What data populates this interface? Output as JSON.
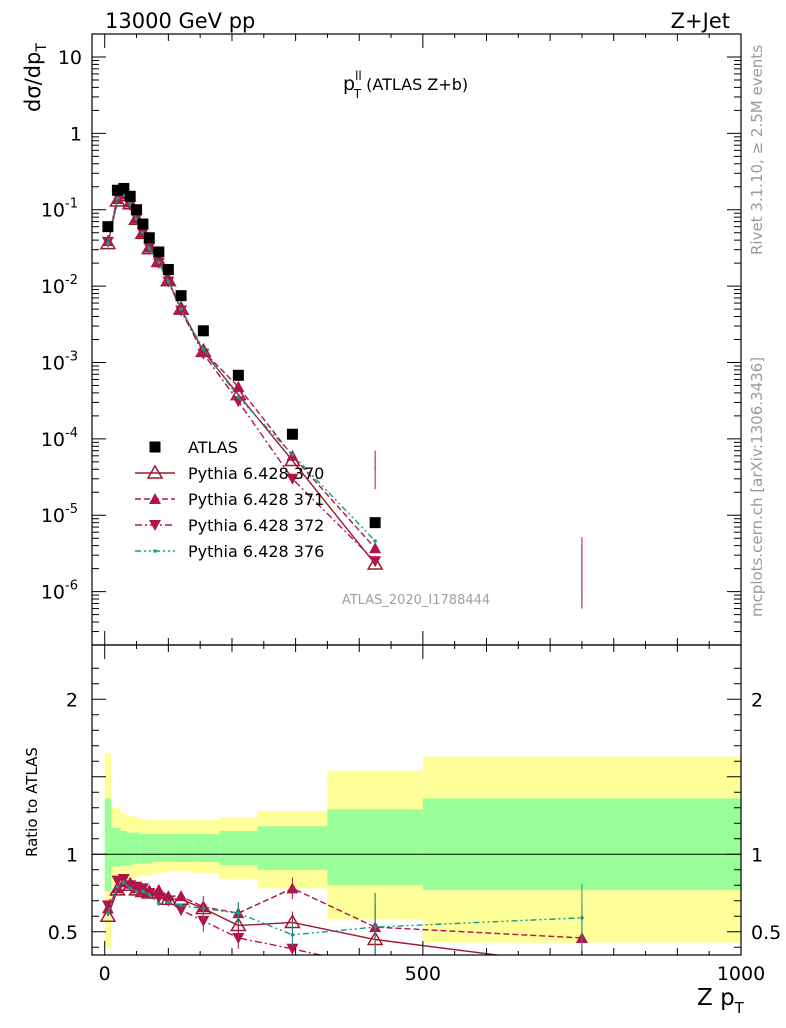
{
  "header": {
    "energy_label": "13000 GeV pp",
    "process_label": "Z+Jet",
    "plot_title_main": "p",
    "plot_title_sup": "ll",
    "plot_title_sub": "T",
    "plot_title_rest": " (ATLAS Z+b)",
    "analysis_id": "ATLAS_2020_I1788444",
    "rivet_label": "Rivet 3.1.10, ≥ 2.5M events",
    "source_label": "mcplots.cern.ch [arXiv:1306.3436]"
  },
  "axes": {
    "ylabel_main": "dσ/dp",
    "ylabel_main_sub": "T",
    "ylabel_ratio": "Ratio to ATLAS",
    "xlabel": "Z p",
    "xlabel_sub": "T"
  },
  "colors": {
    "data": "#000000",
    "p370": "#9b1b2a",
    "p371": "#b0154a",
    "p372": "#b0154a",
    "p376": "#199a8c",
    "band_outer": "#ffff99",
    "band_inner": "#99ff99"
  },
  "chart_data": [
    {
      "type": "scatter",
      "panel": "main",
      "yscale": "log",
      "xlim": [
        -20,
        1000
      ],
      "ylim": [
        2e-07,
        20
      ],
      "x_ticks": [
        0,
        500,
        1000
      ],
      "y_ticks": [
        {
          "v": 1e-06,
          "b": "10",
          "e": "-6"
        },
        {
          "v": 1e-05,
          "b": "10",
          "e": "-5"
        },
        {
          "v": 0.0001,
          "b": "10",
          "e": "-4"
        },
        {
          "v": 0.001,
          "b": "10",
          "e": "-3"
        },
        {
          "v": 0.01,
          "b": "10",
          "e": "-2"
        },
        {
          "v": 0.1,
          "b": "10",
          "e": "-1"
        },
        {
          "v": 1,
          "b": "1",
          "e": ""
        },
        {
          "v": 10,
          "b": "10",
          "e": ""
        }
      ],
      "x": [
        5,
        20,
        30,
        40,
        50,
        60,
        70,
        85,
        100,
        120,
        155,
        210,
        295,
        425,
        750
      ],
      "series": [
        {
          "name": "ATLAS",
          "marker": "square",
          "style": "none",
          "values": [
            0.06,
            0.18,
            0.19,
            0.15,
            0.1,
            0.065,
            0.043,
            0.028,
            0.0165,
            0.0075,
            0.0026,
            0.00068,
            0.000115,
            8e-06,
            null
          ]
        },
        {
          "name": "Pythia 6.428 370",
          "marker": "triangle-open",
          "style": "solid",
          "values": [
            0.036,
            0.13,
            0.155,
            0.12,
            0.075,
            0.049,
            0.031,
            0.021,
            0.0118,
            0.005,
            0.0014,
            0.00038,
            5.2e-05,
            2.3e-06,
            null
          ]
        },
        {
          "name": "Pythia 6.428 371",
          "marker": "triangle-up",
          "style": "dashed",
          "values": [
            0.039,
            0.138,
            0.16,
            0.125,
            0.077,
            0.05,
            0.032,
            0.021,
            0.0118,
            0.005,
            0.0014,
            0.00048,
            6e-05,
            3.7e-06,
            null
          ]
        },
        {
          "name": "Pythia 6.428 372",
          "marker": "triangle-down",
          "style": "dashdot",
          "values": [
            0.038,
            0.15,
            0.165,
            0.115,
            0.078,
            0.05,
            0.032,
            0.02,
            0.0115,
            0.0048,
            0.0013,
            0.00031,
            3e-05,
            2.5e-06,
            null
          ]
        },
        {
          "name": "Pythia 6.428 376",
          "marker": "dot",
          "style": "dashdotdot",
          "values": [
            0.036,
            0.14,
            0.155,
            0.118,
            0.076,
            0.05,
            0.031,
            0.0205,
            0.0115,
            0.005,
            0.0015,
            0.00035,
            6.2e-05,
            4.6e-06,
            null
          ]
        }
      ],
      "legend": [
        "ATLAS",
        "Pythia 6.428 370",
        "Pythia 6.428 371",
        "Pythia 6.428 372",
        "Pythia 6.428 376"
      ],
      "legend_position": "bottom-left"
    },
    {
      "type": "line",
      "panel": "ratio",
      "xlim": [
        -20,
        1000
      ],
      "ylim": [
        0.35,
        2.35
      ],
      "y_ticks": [
        0.5,
        1,
        2
      ],
      "y_tick_labels": [
        "0.5",
        "1",
        "2"
      ],
      "reference": 1,
      "bins": [
        [
          0,
          10
        ],
        [
          10,
          25
        ],
        [
          25,
          35
        ],
        [
          35,
          45
        ],
        [
          45,
          55
        ],
        [
          55,
          65
        ],
        [
          65,
          75
        ],
        [
          75,
          95
        ],
        [
          95,
          110
        ],
        [
          110,
          140
        ],
        [
          140,
          180
        ],
        [
          180,
          240
        ],
        [
          240,
          350
        ],
        [
          350,
          500
        ],
        [
          500,
          1000
        ]
      ],
      "band_outer": [
        [
          0.4,
          1.65
        ],
        [
          0.8,
          1.3
        ],
        [
          0.83,
          1.26
        ],
        [
          0.84,
          1.25
        ],
        [
          0.85,
          1.24
        ],
        [
          0.86,
          1.23
        ],
        [
          0.86,
          1.22
        ],
        [
          0.88,
          1.22
        ],
        [
          0.89,
          1.22
        ],
        [
          0.89,
          1.22
        ],
        [
          0.88,
          1.22
        ],
        [
          0.84,
          1.24
        ],
        [
          0.78,
          1.28
        ],
        [
          0.58,
          1.54
        ],
        [
          0.43,
          1.63
        ]
      ],
      "band_inner": [
        [
          0.76,
          1.36
        ],
        [
          0.92,
          1.17
        ],
        [
          0.93,
          1.15
        ],
        [
          0.93,
          1.14
        ],
        [
          0.94,
          1.14
        ],
        [
          0.94,
          1.13
        ],
        [
          0.94,
          1.13
        ],
        [
          0.95,
          1.13
        ],
        [
          0.95,
          1.13
        ],
        [
          0.95,
          1.13
        ],
        [
          0.95,
          1.13
        ],
        [
          0.93,
          1.15
        ],
        [
          0.9,
          1.18
        ],
        [
          0.8,
          1.29
        ],
        [
          0.77,
          1.36
        ]
      ],
      "x": [
        5,
        20,
        30,
        40,
        50,
        60,
        70,
        85,
        100,
        120,
        155,
        210,
        295,
        425,
        750
      ],
      "series": [
        {
          "name": "Pythia 6.428 370",
          "values": [
            0.6,
            0.77,
            0.8,
            0.8,
            0.77,
            0.76,
            0.75,
            0.75,
            0.71,
            0.71,
            0.65,
            0.54,
            0.56,
            0.45,
            0.28
          ]
        },
        {
          "name": "Pythia 6.428 371",
          "values": [
            0.65,
            0.78,
            0.82,
            0.81,
            0.78,
            0.77,
            0.76,
            0.77,
            0.73,
            0.73,
            0.66,
            0.62,
            0.78,
            0.53,
            0.46
          ]
        },
        {
          "name": "Pythia 6.428 372",
          "values": [
            0.67,
            0.83,
            0.84,
            0.8,
            0.79,
            0.78,
            0.75,
            0.72,
            0.7,
            0.64,
            0.57,
            0.46,
            0.39,
            0.27,
            0.3
          ]
        },
        {
          "name": "Pythia 6.428 376",
          "values": [
            0.62,
            0.79,
            0.82,
            0.78,
            0.76,
            0.76,
            0.74,
            0.68,
            0.69,
            0.67,
            0.65,
            0.62,
            0.48,
            0.53,
            0.59
          ]
        }
      ]
    }
  ]
}
